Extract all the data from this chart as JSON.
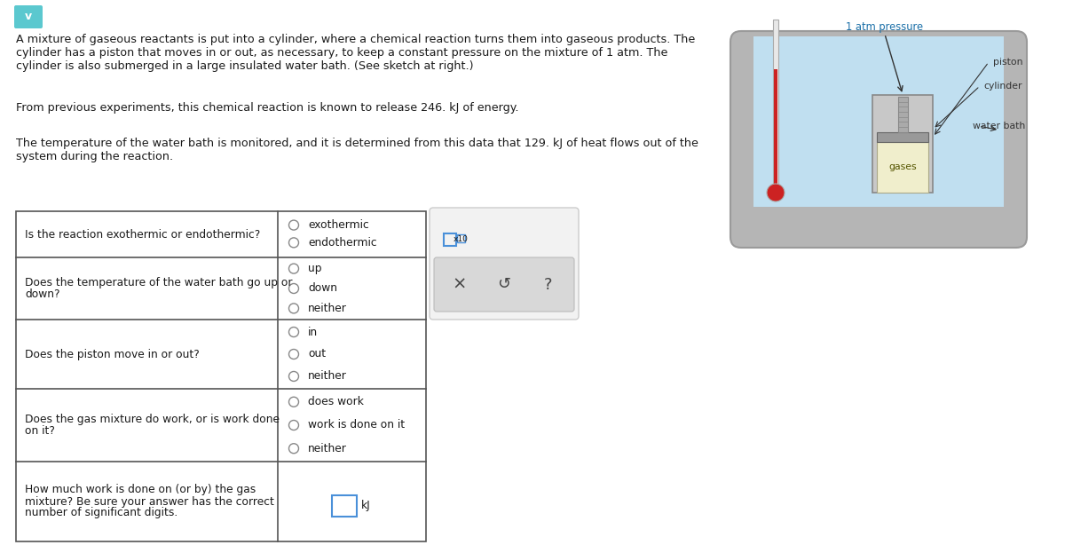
{
  "bg_color": "#ffffff",
  "text_color": "#1a1a1a",
  "paragraph1_line1": "A mixture of gaseous reactants is put into a cylinder, where a chemical reaction turns them into gaseous products. The",
  "paragraph1_line2": "cylinder has a piston that moves in or out, as necessary, to keep a constant pressure on the mixture of 1 atm. The",
  "paragraph1_line3": "cylinder is also submerged in a large insulated water bath. (See sketch at right.)",
  "paragraph2": "From previous experiments, this chemical reaction is known to release 246. kJ of energy.",
  "paragraph3_line1": "The temperature of the water bath is monitored, and it is determined from this data that 129. kJ of heat flows out of the",
  "paragraph3_line2": "system during the reaction.",
  "questions": [
    {
      "question_lines": [
        "Is the reaction exothermic or endothermic?"
      ],
      "options": [
        "exothermic",
        "endothermic"
      ]
    },
    {
      "question_lines": [
        "Does the temperature of the water bath go up or",
        "down?"
      ],
      "options": [
        "up",
        "down",
        "neither"
      ]
    },
    {
      "question_lines": [
        "Does the piston move in or out?"
      ],
      "options": [
        "in",
        "out",
        "neither"
      ]
    },
    {
      "question_lines": [
        "Does the gas mixture do work, or is work done",
        "on it?"
      ],
      "options": [
        "does work",
        "work is done on it",
        "neither"
      ]
    },
    {
      "question_lines": [
        "How much work is done on (or by) the gas",
        "mixture? Be sure your answer has the correct",
        "number of significant digits."
      ],
      "options": []
    }
  ],
  "diagram_label_atm": "1 atm pressure",
  "diagram_label_piston": "piston",
  "diagram_label_cylinder": "cylinder",
  "diagram_label_waterbath": "water bath",
  "diagram_label_gases": "gases",
  "atm_label_color": "#1a6fa8",
  "font_size_body": 9.2,
  "font_size_table": 8.8,
  "font_size_diagram": 7.8,
  "icon_color": "#5bc8cf",
  "radio_color": "#888888",
  "table_border_color": "#555555",
  "input_box_color": "#4a90d9",
  "panel_bg": "#f2f2f2",
  "panel_border": "#cccccc",
  "subpanel_bg": "#d8d8d8",
  "subpanel_border": "#bbbbbb",
  "diagram_outer_color": "#b0b0b0",
  "diagram_water_color": "#c0dff0",
  "diagram_gas_color": "#f0eecc",
  "diagram_therm_red": "#cc2222",
  "diagram_cyl_color": "#c8c8c8",
  "diagram_piston_color": "#aaaaaa"
}
